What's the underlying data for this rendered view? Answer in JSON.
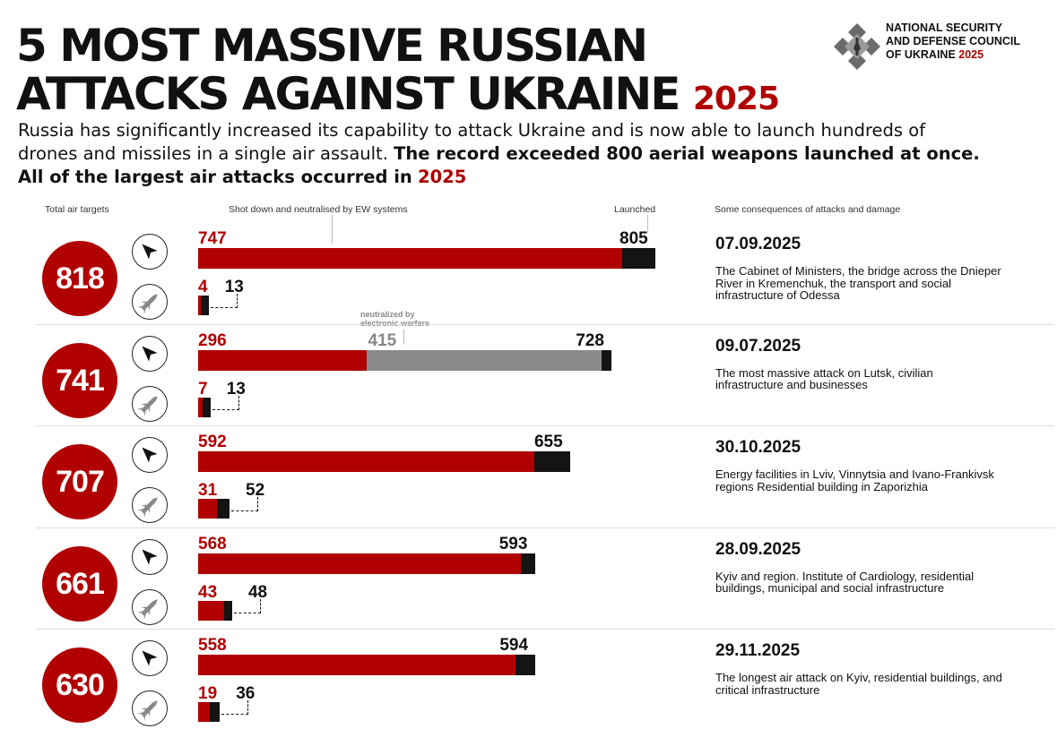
{
  "header": {
    "title_line1": "5 MOST MASSIVE RUSSIAN",
    "title_line2": "ATTACKS AGAINST UKRAINE",
    "title_year": "2025",
    "subtitle_plain": "Russia has significantly increased its capability to attack Ukraine and is now able to launch hundreds of drones and missiles in a single air assault.",
    "subtitle_bold": "The record exceeded 800 aerial weapons launched at once. All of the largest air attacks occurred in",
    "subtitle_year": "2025"
  },
  "logo": {
    "org_line1": "NATIONAL SECURITY",
    "org_line2": "AND DEFENSE COUNCIL",
    "org_line3": "OF UKRAINE",
    "org_year": "2025",
    "icon": "nsdc-emblem-icon"
  },
  "colors": {
    "accent": "#b00000",
    "dark": "#141414",
    "ew_gray": "#8a8a8a",
    "separator": "#dcdcdc"
  },
  "columns": {
    "total": "Total air targets",
    "shot": "Shot down and neutralised by EW systems",
    "launched": "Launched",
    "consequences": "Some consequences of attacks and damage"
  },
  "ew_note": {
    "line1": "neutralized by",
    "line2": "electronic warfare"
  },
  "icons": {
    "drone": "drone-icon",
    "missile": "missile-icon"
  },
  "chart_data": {
    "type": "bar",
    "title": "5 MOST MASSIVE RUSSIAN ATTACKS AGAINST UKRAINE 2025",
    "orientation": "horizontal",
    "series": [
      {
        "name": "Drones shot down",
        "values": [
          747,
          296,
          592,
          568,
          558
        ]
      },
      {
        "name": "Drones neutralized by electronic warfare",
        "values": [
          null,
          415,
          null,
          null,
          null
        ]
      },
      {
        "name": "Drones launched",
        "values": [
          805,
          728,
          655,
          593,
          594
        ]
      },
      {
        "name": "Missiles shot down",
        "values": [
          4,
          7,
          31,
          43,
          19
        ]
      },
      {
        "name": "Missiles launched",
        "values": [
          13,
          13,
          52,
          48,
          36
        ]
      }
    ],
    "attacks": [
      {
        "total": "818",
        "date": "07.09.2025",
        "drones": {
          "shot": 747,
          "ew": null,
          "launched": 805
        },
        "missiles": {
          "shot": 4,
          "launched": 13
        },
        "desc": "The Cabinet of Ministers, the bridge across the Dnieper River in Kremenchuk, the transport and social infrastructure of Odessa"
      },
      {
        "total": "741",
        "date": "09.07.2025",
        "drones": {
          "shot": 296,
          "ew": 415,
          "launched": 728
        },
        "missiles": {
          "shot": 7,
          "launched": 13
        },
        "desc": "The most massive attack on Lutsk, civilian infrastructure and businesses"
      },
      {
        "total": "707",
        "date": "30.10.2025",
        "drones": {
          "shot": 592,
          "ew": null,
          "launched": 655
        },
        "missiles": {
          "shot": 31,
          "launched": 52
        },
        "desc": "Energy facilities in Lviv, Vinnytsia and Ivano-Frankivsk regions Residential building in Zaporizhia"
      },
      {
        "total": "661",
        "date": "28.09.2025",
        "drones": {
          "shot": 568,
          "ew": null,
          "launched": 593
        },
        "missiles": {
          "shot": 43,
          "launched": 48
        },
        "desc": "Kyiv and region. Institute of Cardiology, residential buildings, municipal and social infrastructure"
      },
      {
        "total": "630",
        "date": "29.11.2025",
        "drones": {
          "shot": 558,
          "ew": null,
          "launched": 594
        },
        "missiles": {
          "shot": 19,
          "launched": 36
        },
        "desc": "The longest air attack on Kyiv, residential buildings, and critical infrastructure"
      }
    ]
  }
}
